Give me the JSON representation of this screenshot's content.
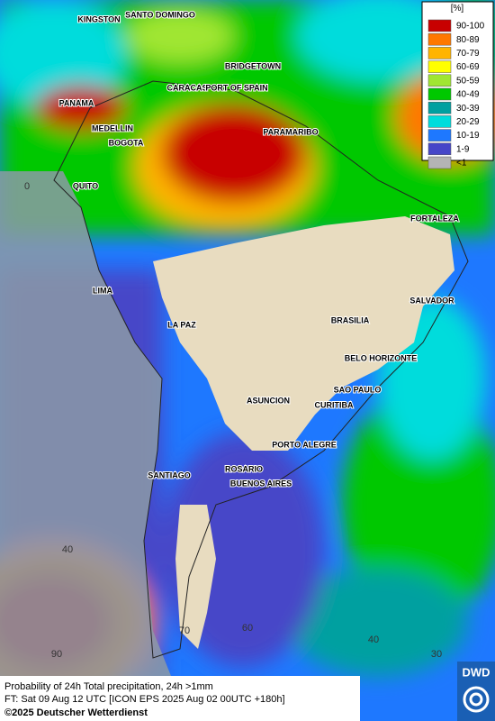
{
  "map": {
    "cities": [
      "KINGSTON",
      "SANTO DOMINGO",
      "BRIDGETOWN",
      "CARACAS",
      "PORT OF SPAIN",
      "PANAMA",
      "MEDELLIN",
      "BOGOTA",
      "PARAMARIBO",
      "QUITO",
      "FORTALEZA",
      "LIMA",
      "SALVADOR",
      "LA PAZ",
      "BRASILIA",
      "BELO HORIZONTE",
      "SAO PAULO",
      "ASUNCION",
      "CURITIBA",
      "PORTO ALEGRE",
      "ROSARIO",
      "SANTIAGO",
      "BUENOS AIRES"
    ],
    "grid_labels": [
      "0",
      "40",
      "90",
      "70",
      "60",
      "40",
      "30"
    ]
  },
  "legend": {
    "title": "[%]",
    "classes": [
      {
        "label": "90-100",
        "color": "#c80000"
      },
      {
        "label": "80-89",
        "color": "#ff7800"
      },
      {
        "label": "70-79",
        "color": "#ffb400"
      },
      {
        "label": "60-69",
        "color": "#ffff00"
      },
      {
        "label": "50-59",
        "color": "#a0e632"
      },
      {
        "label": "40-49",
        "color": "#00c800"
      },
      {
        "label": "30-39",
        "color": "#00a0a0"
      },
      {
        "label": "20-29",
        "color": "#00dcdc"
      },
      {
        "label": "10-19",
        "color": "#1e78ff"
      },
      {
        "label": "1-9",
        "color": "#4646c8"
      },
      {
        "label": "<1",
        "color": "#b4b4b4"
      }
    ]
  },
  "footer": {
    "line1": "Probability of 24h Total precipitation, 24h >1mm",
    "line2": "FT: Sat 09 Aug 12 UTC [ICON EPS 2025 Aug 02 00UTC +180h]",
    "copyright": "©2025 Deutscher Wetterdienst"
  },
  "logo": "DWD"
}
